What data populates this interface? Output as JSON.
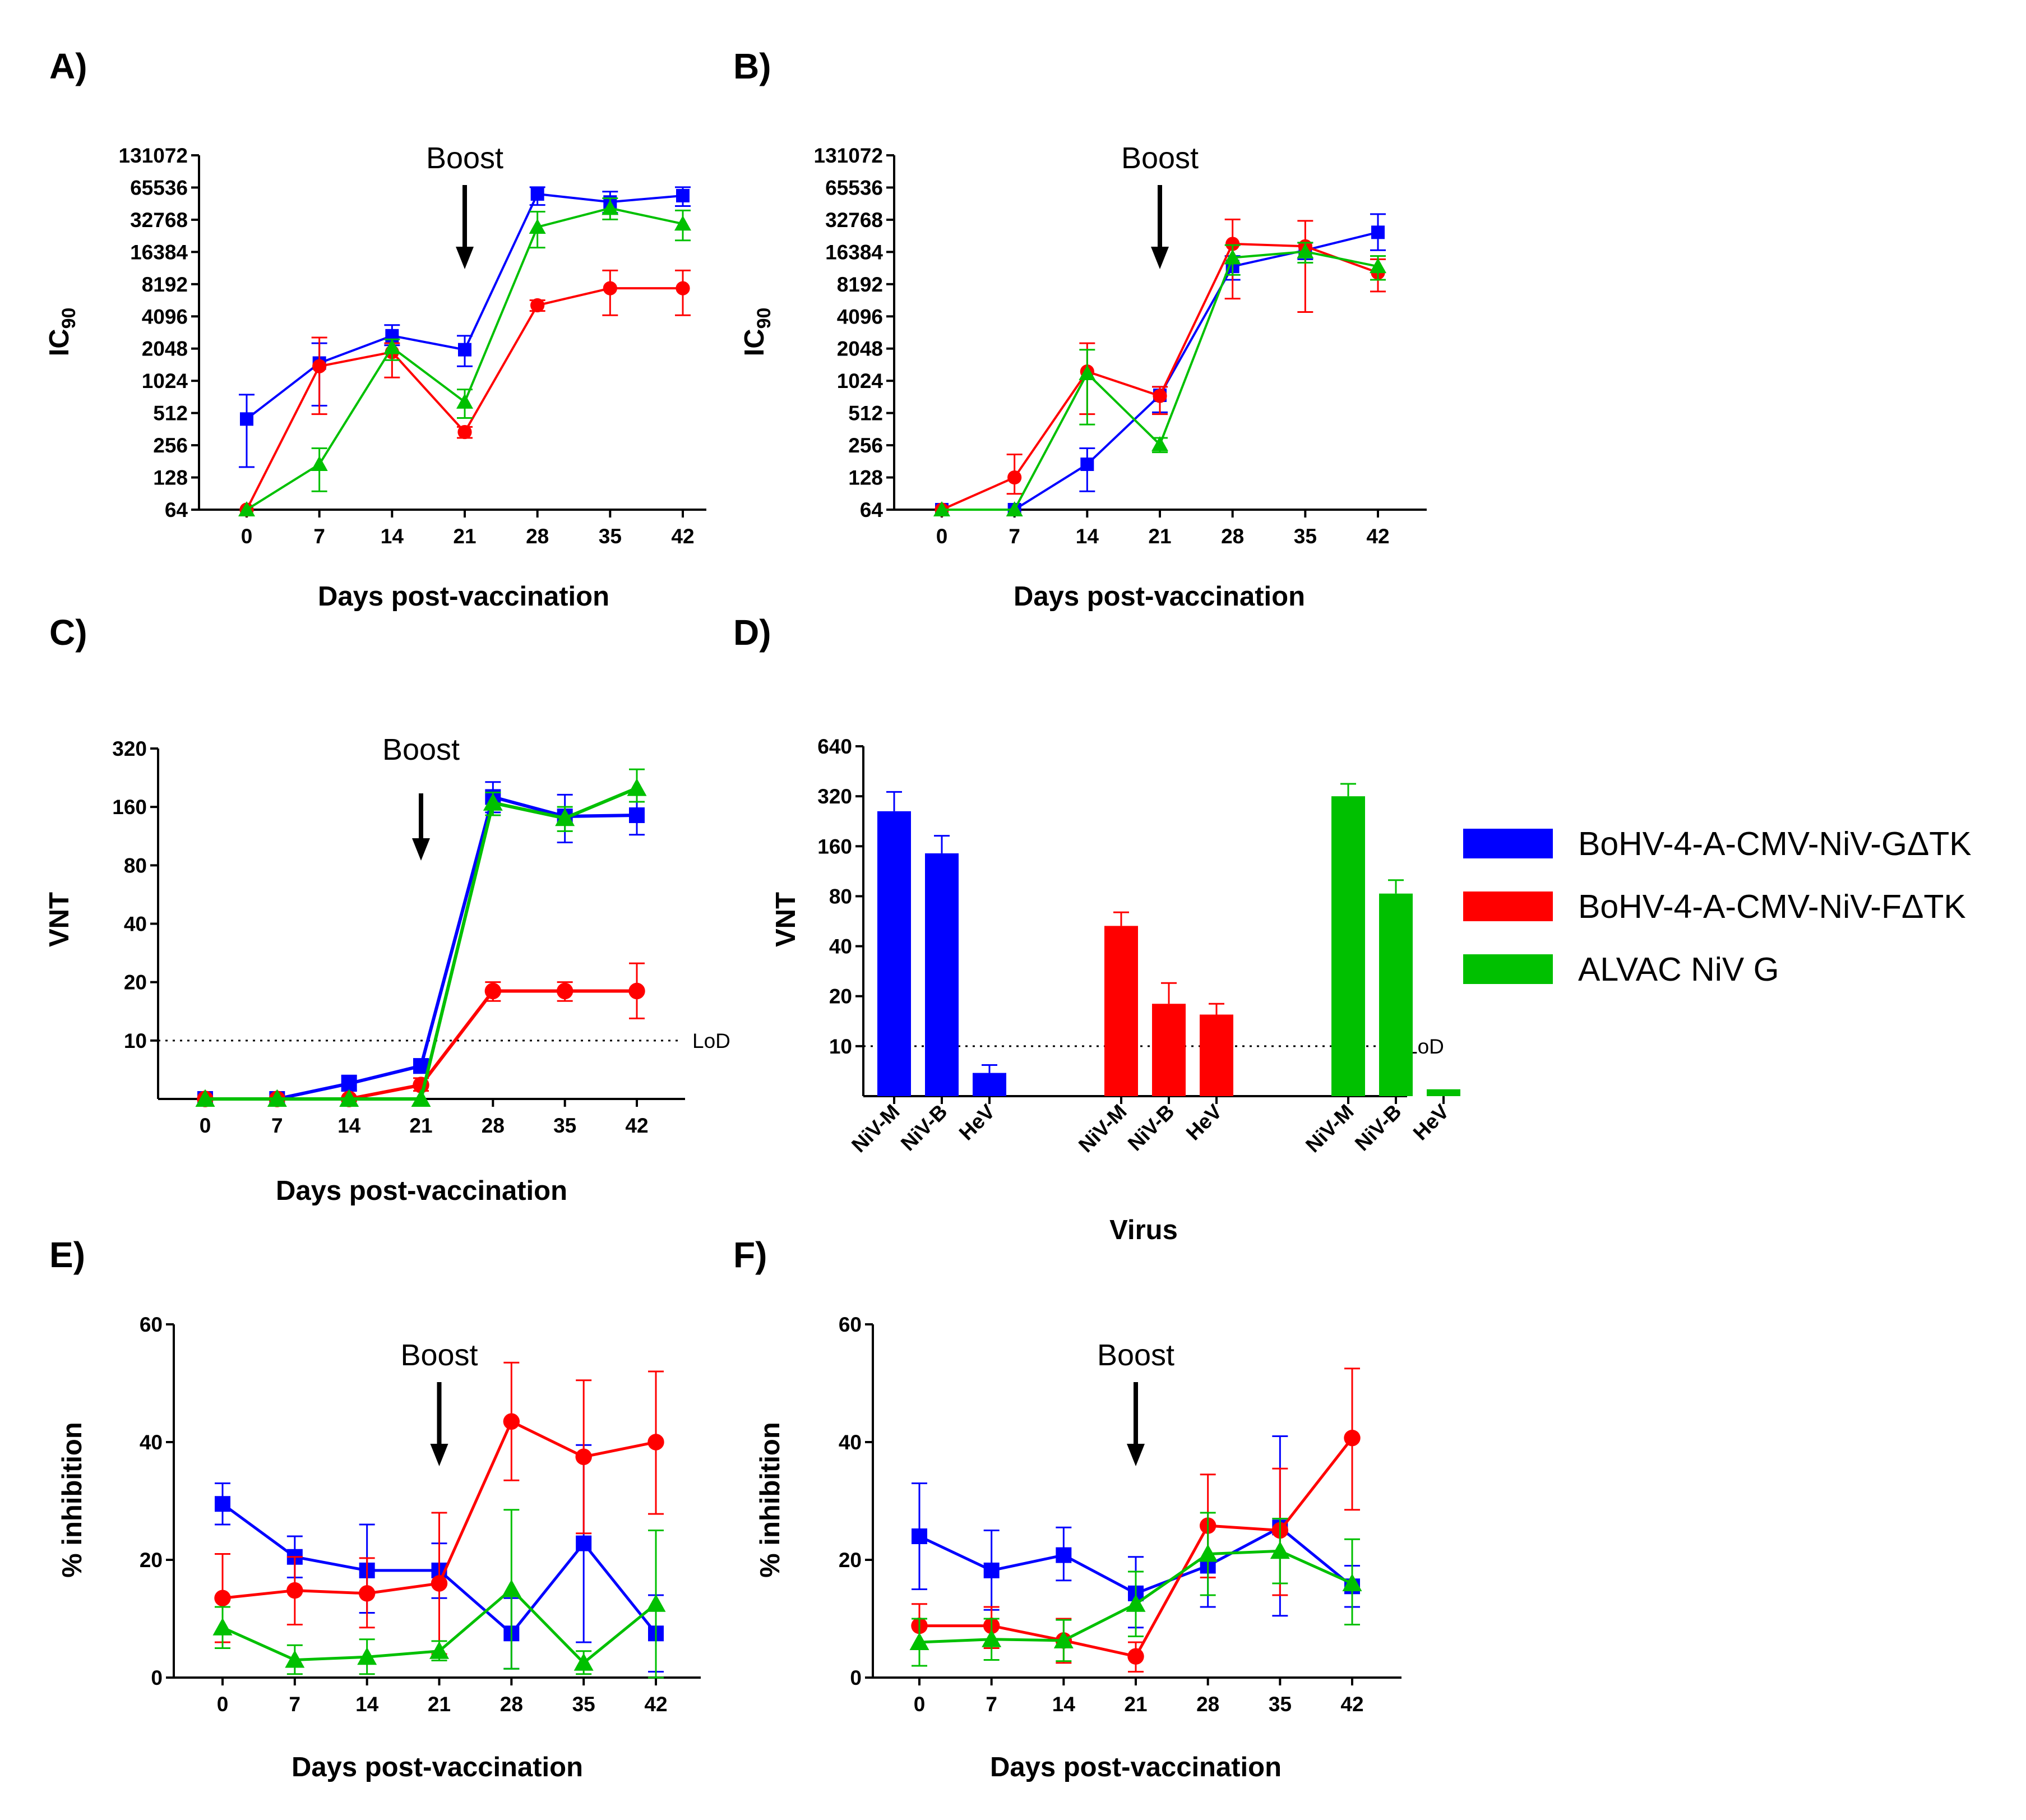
{
  "chart_data": [
    {
      "panel": "A)",
      "type": "line",
      "scale": "log2",
      "xlabel": "Days post-vaccination",
      "ylabel": "IC",
      "ylabel_sub": "90",
      "x": [
        0,
        7,
        14,
        21,
        28,
        35,
        42
      ],
      "yticks": [
        "64",
        "128",
        "256",
        "512",
        "1024",
        "2048",
        "4096",
        "8192",
        "16384",
        "32768",
        "65536",
        "131072"
      ],
      "ylim": [
        64,
        131072
      ],
      "annotation": "Boost",
      "annotation_x": 21,
      "series": [
        {
          "name": "BoHV-4-A-CMV-NiV-GΔTK",
          "color": "#0000ff",
          "marker": "square",
          "values": [
            450,
            1500,
            2700,
            2000,
            57000,
            48000,
            55000
          ],
          "err_lo": [
            160,
            600,
            2200,
            1400,
            45000,
            38000,
            44000
          ],
          "err_hi": [
            760,
            2300,
            3400,
            2700,
            66000,
            60000,
            66000
          ]
        },
        {
          "name": "BoHV-4-A-CMV-NiV-FΔTK",
          "color": "#ff0000",
          "marker": "circle",
          "values": [
            64,
            1400,
            1900,
            340,
            5200,
            7500,
            7500
          ],
          "err_lo": [
            64,
            500,
            1100,
            300,
            4600,
            4200,
            4200
          ],
          "err_hi": [
            64,
            2600,
            2300,
            380,
            5800,
            11000,
            11000
          ]
        },
        {
          "name": "ALVAC NiV G",
          "color": "#00c000",
          "marker": "triangle",
          "values": [
            64,
            170,
            2100,
            650,
            28000,
            42000,
            30000
          ],
          "err_lo": [
            64,
            95,
            1600,
            460,
            18000,
            33000,
            21000
          ],
          "err_hi": [
            64,
            240,
            2500,
            850,
            39000,
            52000,
            40000
          ]
        }
      ]
    },
    {
      "panel": "B)",
      "type": "line",
      "scale": "log2",
      "xlabel": "Days post-vaccination",
      "ylabel": "IC",
      "ylabel_sub": "90",
      "x": [
        0,
        7,
        14,
        21,
        28,
        35,
        42
      ],
      "yticks": [
        "64",
        "128",
        "256",
        "512",
        "1024",
        "2048",
        "4096",
        "8192",
        "16384",
        "32768",
        "65536",
        "131072"
      ],
      "ylim": [
        64,
        131072
      ],
      "annotation": "Boost",
      "annotation_x": 21,
      "series": [
        {
          "name": "BoHV-4-A-CMV-NiV-GΔTK",
          "color": "#0000ff",
          "marker": "square",
          "values": [
            64,
            64,
            170,
            750,
            12000,
            17000,
            25000
          ],
          "err_lo": [
            64,
            64,
            95,
            520,
            9000,
            14000,
            17000
          ],
          "err_hi": [
            64,
            64,
            240,
            900,
            15000,
            20000,
            37000
          ]
        },
        {
          "name": "BoHV-4-A-CMV-NiV-FΔTK",
          "color": "#ff0000",
          "marker": "circle",
          "values": [
            64,
            128,
            1250,
            740,
            19500,
            18500,
            10500
          ],
          "err_lo": [
            64,
            90,
            500,
            500,
            6000,
            4500,
            7000
          ],
          "err_hi": [
            64,
            210,
            2300,
            900,
            33000,
            32000,
            14000
          ]
        },
        {
          "name": "ALVAC NiV G",
          "color": "#00c000",
          "marker": "triangle",
          "values": [
            64,
            64,
            1200,
            260,
            14500,
            16500,
            12000
          ],
          "err_lo": [
            64,
            64,
            400,
            220,
            10000,
            13000,
            9000
          ],
          "err_hi": [
            64,
            64,
            2000,
            300,
            19000,
            20000,
            15000
          ]
        }
      ]
    },
    {
      "panel": "C)",
      "type": "line",
      "scale": "log2",
      "xlabel": "Days post-vaccination",
      "ylabel": "VNT",
      "x": [
        0,
        7,
        14,
        21,
        28,
        35,
        42
      ],
      "yticks": [
        "10",
        "20",
        "40",
        "80",
        "160",
        "320"
      ],
      "ylim": [
        5,
        320
      ],
      "annotation": "Boost",
      "annotation_x": 21,
      "reference_line": {
        "value": 10,
        "label": "LoD"
      },
      "series": [
        {
          "name": "BoHV-4-A-CMV-NiV-GΔTK",
          "color": "#0000ff",
          "marker": "square",
          "values": [
            5,
            5,
            6,
            7.4,
            180,
            143,
            145
          ],
          "err_lo": [
            5,
            5,
            5.5,
            6.8,
            150,
            105,
            115
          ],
          "err_hi": [
            5,
            5,
            6.6,
            8.0,
            215,
            185,
            185
          ]
        },
        {
          "name": "BoHV-4-A-CMV-NiV-FΔTK",
          "color": "#ff0000",
          "marker": "circle",
          "values": [
            5,
            5,
            5,
            5.9,
            18,
            18,
            18
          ],
          "err_lo": [
            5,
            5,
            5,
            5.5,
            16,
            16,
            13
          ],
          "err_hi": [
            5,
            5,
            5,
            6.4,
            20,
            20,
            25
          ]
        },
        {
          "name": "ALVAC NiV G",
          "color": "#00c000",
          "marker": "triangle",
          "values": [
            5,
            5,
            5,
            5,
            168,
            140,
            200
          ],
          "err_lo": [
            5,
            5,
            5,
            5,
            145,
            120,
            170
          ],
          "err_hi": [
            5,
            5,
            5,
            5,
            190,
            160,
            250
          ]
        }
      ]
    },
    {
      "panel": "D)",
      "type": "bar",
      "scale": "log2",
      "xlabel": "Virus",
      "ylabel": "VNT",
      "categories": [
        "NiV-M",
        "NiV-B",
        "HeV",
        "NiV-M",
        "NiV-B",
        "HeV",
        "NiV-M",
        "NiV-B",
        "HeV"
      ],
      "groups": [
        "BoHV-4-A-CMV-NiV-GΔTK",
        "BoHV-4-A-CMV-NiV-FΔTK",
        "ALVAC NiV G"
      ],
      "colors": [
        "#0000ff",
        "#0000ff",
        "#0000ff",
        "#ff0000",
        "#ff0000",
        "#ff0000",
        "#00c000",
        "#00c000",
        "#00c000"
      ],
      "values": [
        260,
        145,
        6.9,
        53,
        18,
        15.5,
        320,
        83,
        5.5
      ],
      "err_hi": [
        340,
        185,
        7.7,
        64,
        24,
        18,
        380,
        100,
        5.5
      ],
      "yticks": [
        "10",
        "20",
        "40",
        "80",
        "160",
        "320",
        "640"
      ],
      "ylim": [
        5,
        640
      ],
      "reference_line": {
        "value": 10,
        "label": "LoD"
      }
    },
    {
      "panel": "E)",
      "type": "line",
      "scale": "linear",
      "xlabel": "Days post-vaccination",
      "ylabel": "% inhibition",
      "x": [
        0,
        7,
        14,
        21,
        28,
        35,
        42
      ],
      "yticks": [
        "0",
        "20",
        "40",
        "60"
      ],
      "ylim": [
        0,
        60
      ],
      "annotation": "Boost",
      "annotation_x": 21,
      "series": [
        {
          "name": "BoHV-4-A-CMV-NiV-GΔTK",
          "color": "#0000ff",
          "marker": "square",
          "values": [
            29.5,
            20.5,
            18.2,
            18.2,
            7.5,
            22.8,
            7.5
          ],
          "err_lo": [
            26,
            17,
            11,
            13.5,
            1.5,
            6,
            1
          ],
          "err_hi": [
            33,
            24,
            26,
            22.8,
            13.5,
            39.5,
            14
          ]
        },
        {
          "name": "BoHV-4-A-CMV-NiV-FΔTK",
          "color": "#ff0000",
          "marker": "circle",
          "values": [
            13.5,
            14.8,
            14.3,
            16,
            43.5,
            37.5,
            40
          ],
          "err_lo": [
            6,
            9,
            8.5,
            4,
            33.5,
            24.5,
            27.8
          ],
          "err_hi": [
            21,
            20.5,
            20.3,
            28,
            53.5,
            50.5,
            52
          ]
        },
        {
          "name": "ALVAC NiV G",
          "color": "#00c000",
          "marker": "triangle",
          "values": [
            8.5,
            3,
            3.5,
            4.5,
            15,
            2.5,
            12.5
          ],
          "err_lo": [
            5,
            0.6,
            0.6,
            2.9,
            1.5,
            0.6,
            0
          ],
          "err_hi": [
            12,
            5.5,
            6.5,
            6.2,
            28.5,
            4.5,
            25
          ]
        }
      ]
    },
    {
      "panel": "F)",
      "type": "line",
      "scale": "linear",
      "xlabel": "Days post-vaccination",
      "ylabel": "% inhibition",
      "x": [
        0,
        7,
        14,
        21,
        28,
        35,
        42
      ],
      "yticks": [
        "0",
        "20",
        "40",
        "60"
      ],
      "ylim": [
        0,
        60
      ],
      "annotation": "Boost",
      "annotation_x": 21,
      "series": [
        {
          "name": "BoHV-4-A-CMV-NiV-GΔTK",
          "color": "#0000ff",
          "marker": "square",
          "values": [
            24,
            18.2,
            20.8,
            14.3,
            19,
            25.5,
            15.5
          ],
          "err_lo": [
            15,
            11.5,
            16.5,
            8.5,
            12,
            10.5,
            12
          ],
          "err_hi": [
            33,
            25,
            25.5,
            20.5,
            26,
            41,
            19
          ]
        },
        {
          "name": "BoHV-4-A-CMV-NiV-FΔTK",
          "color": "#ff0000",
          "marker": "circle",
          "values": [
            8.8,
            8.8,
            6.3,
            3.6,
            25.8,
            25,
            40.7
          ],
          "err_lo": [
            5,
            5,
            2.5,
            1,
            17,
            14,
            28.5
          ],
          "err_hi": [
            12.5,
            12,
            10,
            6,
            34.5,
            35.5,
            52.5
          ]
        },
        {
          "name": "ALVAC NiV G",
          "color": "#00c000",
          "marker": "triangle",
          "values": [
            6,
            6.5,
            6.3,
            12.5,
            21,
            21.5,
            16
          ],
          "err_lo": [
            2,
            3,
            2.8,
            7,
            14,
            16,
            9
          ],
          "err_hi": [
            10,
            10,
            9.8,
            18,
            28,
            27,
            23.5
          ]
        }
      ]
    }
  ],
  "legend": [
    {
      "label": "BoHV-4-A-CMV-NiV-GΔTK",
      "color": "#0000ff"
    },
    {
      "label": "BoHV-4-A-CMV-NiV-FΔTK",
      "color": "#ff0000"
    },
    {
      "label": "ALVAC NiV G",
      "color": "#00c000"
    }
  ]
}
